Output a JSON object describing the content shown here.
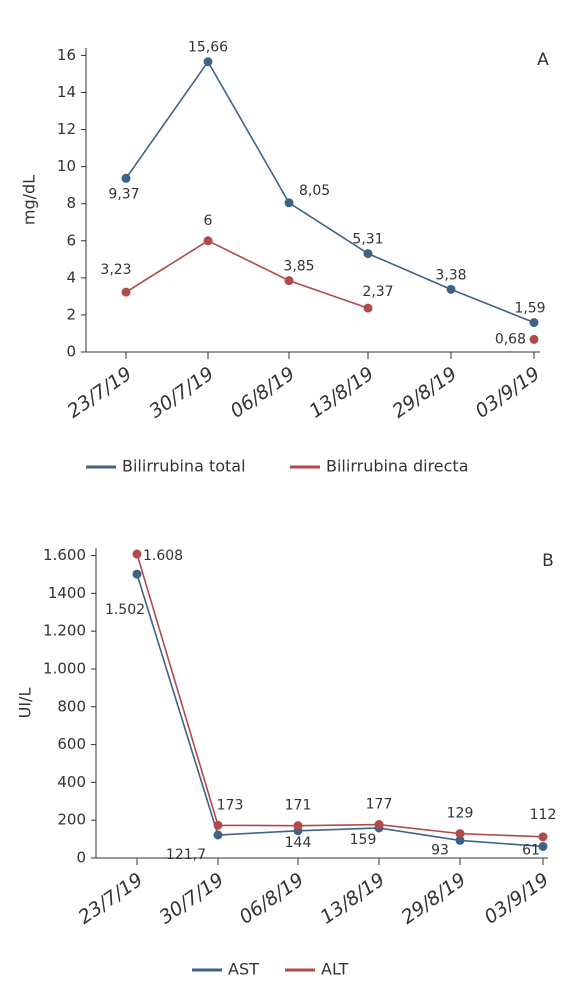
{
  "chart_data": [
    {
      "type": "line",
      "annotation": "A",
      "ylabel": "mg/dL",
      "categories": [
        "23/7/19",
        "30/7/19",
        "06/8/19",
        "13/8/19",
        "29/8/19",
        "03/9/19"
      ],
      "series": [
        {
          "name": "Bilirrubina total",
          "color": "#3f6384",
          "values": [
            9.37,
            15.66,
            8.05,
            5.31,
            3.38,
            1.59
          ],
          "value_labels": [
            "9,37",
            "15,66",
            "8,05",
            "5,31",
            "3,38",
            "1,59"
          ]
        },
        {
          "name": "Bilirrubina directa",
          "color": "#b24a4b",
          "values": [
            3.23,
            6,
            3.85,
            2.37,
            null,
            0.68
          ],
          "value_labels": [
            "3,23",
            "6",
            "3,85",
            "2,37",
            null,
            "0,68"
          ]
        }
      ],
      "ylim": [
        0,
        16.4
      ],
      "yticks": [
        0,
        2,
        4,
        6,
        8,
        10,
        12,
        14,
        16
      ]
    },
    {
      "type": "line",
      "annotation": "B",
      "ylabel": "UI/L",
      "categories": [
        "23/7/19",
        "30/7/19",
        "06/8/19",
        "13/8/19",
        "29/8/19",
        "03/9/19"
      ],
      "series": [
        {
          "name": "AST",
          "color": "#3f6384",
          "values": [
            1502,
            121.7,
            144,
            159,
            93,
            61
          ],
          "value_labels": [
            "1.502",
            "121,7",
            "144",
            "159",
            "93",
            "61"
          ]
        },
        {
          "name": "ALT",
          "color": "#b24a4b",
          "values": [
            1608,
            173,
            171,
            177,
            129,
            112
          ],
          "value_labels": [
            "1.608",
            "173",
            "171",
            "177",
            "129",
            "112"
          ]
        }
      ],
      "ylim": [
        0,
        1640
      ],
      "yticks": [
        0,
        200,
        400,
        600,
        800,
        {
          "value": 1000,
          "label": "1.000"
        },
        {
          "value": 1200,
          "label": "1.200"
        },
        1400,
        {
          "value": 1600,
          "label": "1.600"
        }
      ]
    }
  ]
}
